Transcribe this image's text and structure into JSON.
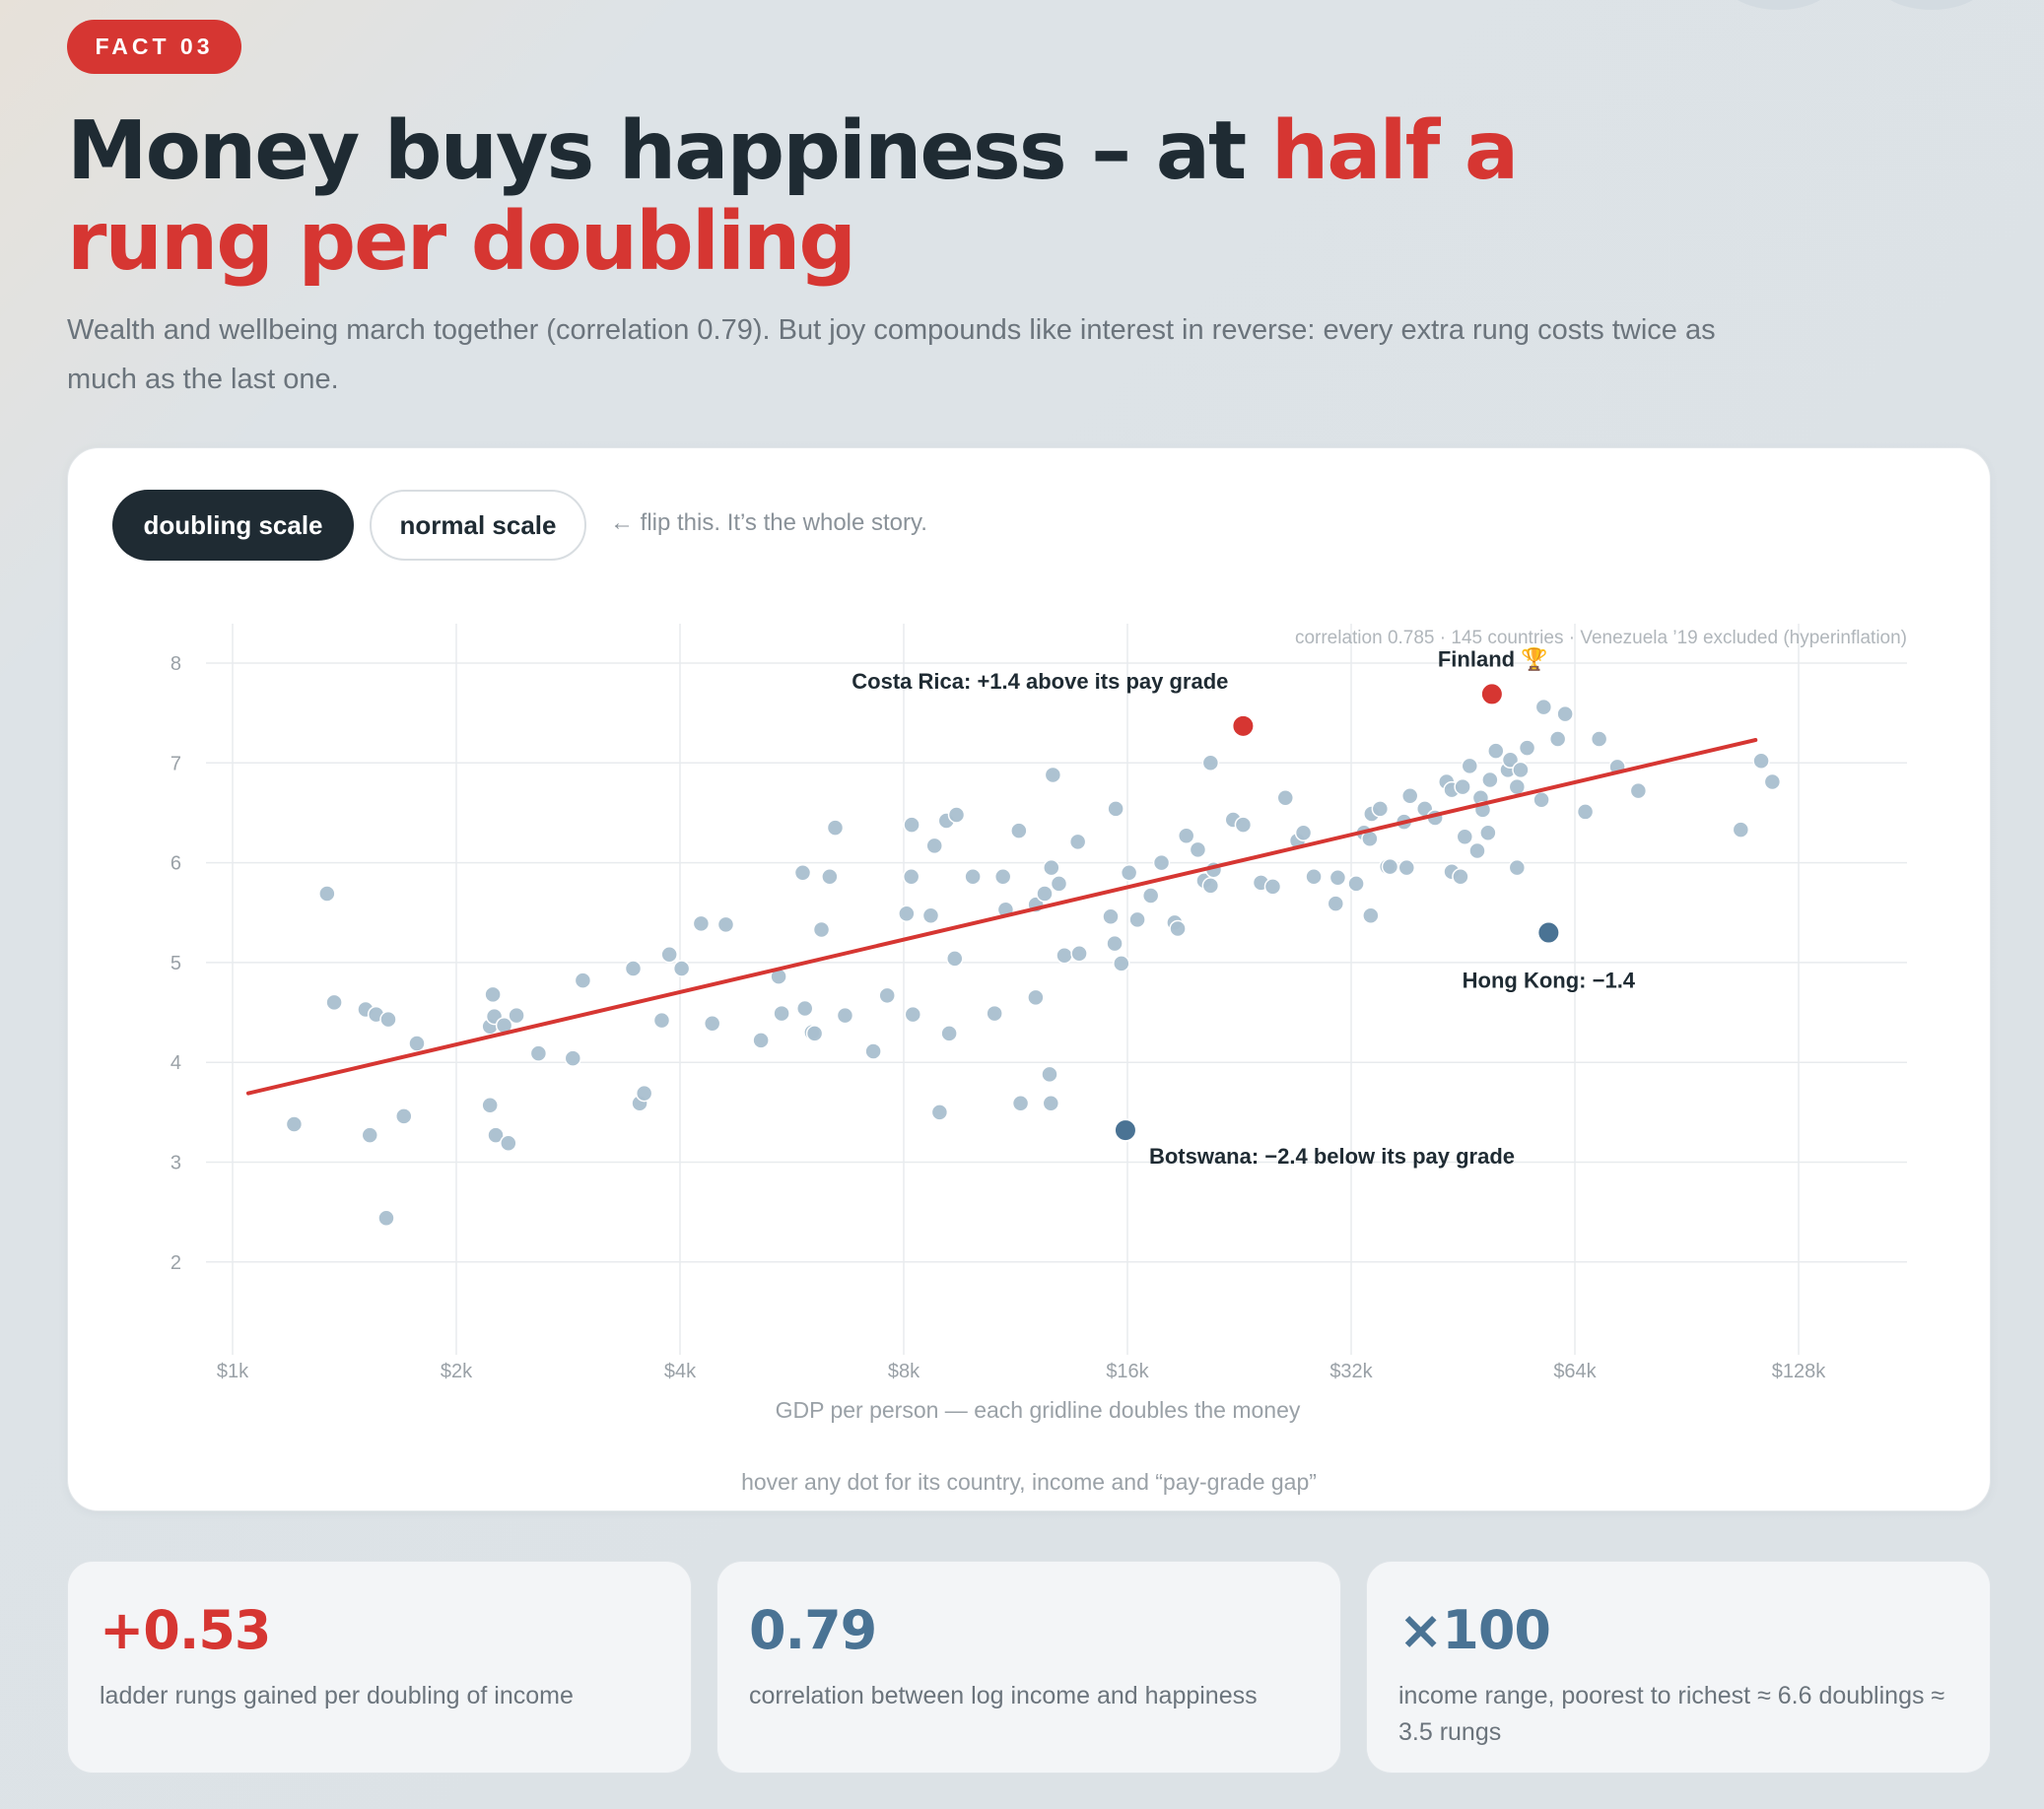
{
  "badge": "FACT 03",
  "headline": {
    "part1": "Money buys happiness – at ",
    "highlight": "half a rung per doubling"
  },
  "subhead": "Wealth and wellbeing march together (correlation 0.79). But joy compounds like interest in reverse: every extra rung costs twice as much as the last one.",
  "toggles": {
    "active": "doubling scale",
    "inactive": "normal scale",
    "hint": "← flip this. It’s the whole story."
  },
  "chart_note": "correlation 0.785 · 145 countries · Venezuela ’19 excluded (hyperinflation)",
  "hover_hint": "hover any dot for its country, income and “pay-grade gap”",
  "colors": {
    "accent": "#d63632",
    "dot": "#a9bfcf",
    "negative": "#4a7394",
    "ink": "#1f2b33"
  },
  "chart_data": {
    "type": "scatter",
    "x_scale": "log2",
    "xlabel": "GDP per person — each gridline doubles the money",
    "ylabel": "",
    "xlim": [
      1000,
      128000
    ],
    "ylim": [
      2,
      8
    ],
    "x_ticks": [
      1000,
      2000,
      4000,
      8000,
      16000,
      32000,
      64000,
      128000
    ],
    "x_tick_labels": [
      "$1k",
      "$2k",
      "$4k",
      "$8k",
      "$16k",
      "$32k",
      "$64k",
      "$128k"
    ],
    "y_ticks": [
      2,
      3,
      4,
      5,
      6,
      7,
      8
    ],
    "y_tick_labels": [
      "2",
      "3",
      "4",
      "5",
      "6",
      "7",
      "8"
    ],
    "grid": true,
    "trend_line": {
      "x": [
        1050,
        112000
      ],
      "y": [
        3.69,
        7.23
      ]
    },
    "points": [
      [
        1340,
        5.69
      ],
      [
        1370,
        4.6
      ],
      [
        1510,
        4.53
      ],
      [
        1560,
        4.48
      ],
      [
        1620,
        4.43
      ],
      [
        1530,
        3.27
      ],
      [
        1210,
        3.38
      ],
      [
        1610,
        2.44
      ],
      [
        1770,
        4.19
      ],
      [
        1700,
        3.46
      ],
      [
        2240,
        4.68
      ],
      [
        2220,
        4.36
      ],
      [
        2250,
        4.46
      ],
      [
        2320,
        4.37
      ],
      [
        2410,
        4.47
      ],
      [
        2580,
        4.09
      ],
      [
        2870,
        4.04
      ],
      [
        2960,
        4.82
      ],
      [
        2220,
        3.57
      ],
      [
        2260,
        3.27
      ],
      [
        2350,
        3.19
      ],
      [
        3460,
        4.94
      ],
      [
        3870,
        5.08
      ],
      [
        4020,
        4.94
      ],
      [
        3530,
        3.59
      ],
      [
        3580,
        3.69
      ],
      [
        3780,
        4.42
      ],
      [
        4270,
        5.39
      ],
      [
        4610,
        5.38
      ],
      [
        4420,
        4.39
      ],
      [
        5140,
        4.22
      ],
      [
        5430,
        4.86
      ],
      [
        5480,
        4.49
      ],
      [
        5850,
        5.9
      ],
      [
        6360,
        5.86
      ],
      [
        6470,
        6.35
      ],
      [
        6200,
        5.33
      ],
      [
        5890,
        4.54
      ],
      [
        6020,
        4.3
      ],
      [
        6070,
        4.29
      ],
      [
        6670,
        4.47
      ],
      [
        7280,
        4.11
      ],
      [
        8200,
        6.38
      ],
      [
        8070,
        5.49
      ],
      [
        8190,
        5.86
      ],
      [
        8700,
        5.47
      ],
      [
        8800,
        6.17
      ],
      [
        9130,
        6.42
      ],
      [
        9420,
        6.48
      ],
      [
        9370,
        5.04
      ],
      [
        9210,
        4.29
      ],
      [
        8940,
        3.5
      ],
      [
        8230,
        4.48
      ],
      [
        7600,
        4.67
      ],
      [
        9910,
        5.86
      ],
      [
        10880,
        5.86
      ],
      [
        10970,
        5.53
      ],
      [
        10600,
        4.49
      ],
      [
        11430,
        6.32
      ],
      [
        12050,
        5.58
      ],
      [
        12640,
        5.95
      ],
      [
        12380,
        5.69
      ],
      [
        12940,
        5.79
      ],
      [
        13160,
        5.07
      ],
      [
        13780,
        5.09
      ],
      [
        12040,
        4.65
      ],
      [
        11490,
        3.59
      ],
      [
        12570,
        3.88
      ],
      [
        12620,
        3.59
      ],
      [
        12700,
        6.88
      ],
      [
        13720,
        6.21
      ],
      [
        15430,
        6.54
      ],
      [
        15190,
        5.46
      ],
      [
        15380,
        5.19
      ],
      [
        15700,
        4.99
      ],
      [
        16080,
        5.9
      ],
      [
        16500,
        5.43
      ],
      [
        17200,
        5.67
      ],
      [
        17780,
        6.0
      ],
      [
        18520,
        5.4
      ],
      [
        18700,
        5.34
      ],
      [
        19200,
        6.27
      ],
      [
        19900,
        6.13
      ],
      [
        20300,
        5.82
      ],
      [
        20700,
        5.77
      ],
      [
        20900,
        5.93
      ],
      [
        20700,
        7.0
      ],
      [
        22200,
        6.43
      ],
      [
        22900,
        6.38
      ],
      [
        24200,
        5.8
      ],
      [
        25100,
        5.76
      ],
      [
        26100,
        6.65
      ],
      [
        27100,
        6.22
      ],
      [
        27600,
        6.3
      ],
      [
        28500,
        5.86
      ],
      [
        30500,
        5.59
      ],
      [
        30700,
        5.85
      ],
      [
        32500,
        5.79
      ],
      [
        34000,
        5.47
      ],
      [
        33300,
        6.3
      ],
      [
        33900,
        6.24
      ],
      [
        34100,
        6.49
      ],
      [
        35000,
        6.54
      ],
      [
        35800,
        5.96
      ],
      [
        36100,
        5.96
      ],
      [
        38000,
        5.95
      ],
      [
        37700,
        6.41
      ],
      [
        38400,
        6.67
      ],
      [
        40200,
        6.54
      ],
      [
        41500,
        6.45
      ],
      [
        43000,
        6.81
      ],
      [
        43700,
        6.73
      ],
      [
        45200,
        6.76
      ],
      [
        45500,
        6.26
      ],
      [
        46200,
        6.97
      ],
      [
        43700,
        5.91
      ],
      [
        44900,
        5.86
      ],
      [
        47800,
        6.65
      ],
      [
        48100,
        6.53
      ],
      [
        47300,
        6.12
      ],
      [
        48900,
        6.3
      ],
      [
        49200,
        6.83
      ],
      [
        50100,
        7.12
      ],
      [
        52000,
        6.93
      ],
      [
        52400,
        7.03
      ],
      [
        53500,
        6.76
      ],
      [
        54100,
        6.93
      ],
      [
        55200,
        7.15
      ],
      [
        57700,
        6.63
      ],
      [
        53500,
        5.95
      ],
      [
        58100,
        7.56
      ],
      [
        60700,
        7.24
      ],
      [
        62100,
        7.49
      ],
      [
        66100,
        6.51
      ],
      [
        69000,
        7.24
      ],
      [
        73000,
        6.96
      ],
      [
        77900,
        6.72
      ],
      [
        107000,
        6.33
      ],
      [
        114000,
        7.02
      ],
      [
        118000,
        6.81
      ]
    ],
    "highlights": [
      {
        "name": "Finland",
        "label": "Finland 🏆",
        "x": 49500,
        "y": 7.69,
        "color": "#d63632"
      },
      {
        "name": "Costa Rica",
        "label": "Costa Rica: +1.4 above its pay grade",
        "x": 22900,
        "y": 7.37,
        "color": "#d63632"
      },
      {
        "name": "Hong Kong",
        "label": "Hong Kong: −1.4",
        "x": 59000,
        "y": 5.3,
        "color": "#4a7394"
      },
      {
        "name": "Botswana",
        "label": "Botswana: −2.4 below its pay grade",
        "x": 15900,
        "y": 3.32,
        "color": "#4a7394"
      }
    ]
  },
  "stats": [
    {
      "value": "+0.53",
      "desc": "ladder rungs gained per doubling of income",
      "color": "#d63632"
    },
    {
      "value": "0.79",
      "desc": "correlation between log income and happiness",
      "color": "#4a7394"
    },
    {
      "value": "×100",
      "desc": "income range, poorest to richest ≈ 6.6 doublings ≈ 3.5 rungs",
      "color": "#4a7394"
    }
  ]
}
